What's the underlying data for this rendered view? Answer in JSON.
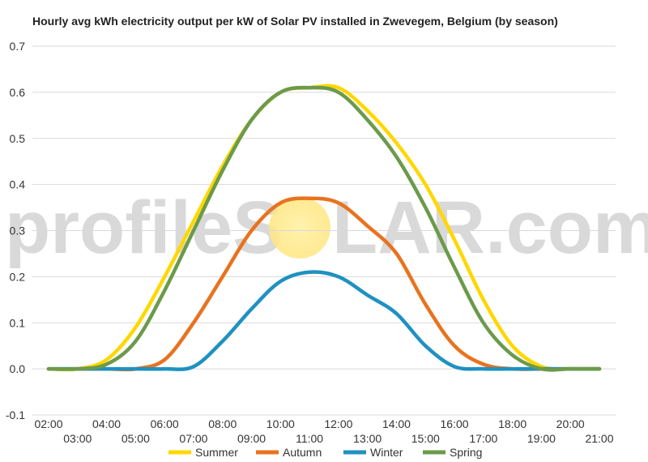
{
  "chart_data": {
    "type": "line",
    "title": "Hourly avg kWh electricity output per kW of Solar PV installed in Zwevegem, Belgium (by season)",
    "xlabel": "",
    "ylabel": "",
    "ylim": [
      -0.1,
      0.7
    ],
    "yticks": [
      "-0.1",
      "0.0",
      "0.1",
      "0.2",
      "0.3",
      "0.4",
      "0.5",
      "0.6",
      "0.7"
    ],
    "xlim": [
      2,
      21
    ],
    "x_tick_labels_upper": [
      "02:00",
      "04:00",
      "06:00",
      "08:00",
      "10:00",
      "12:00",
      "14:00",
      "16:00",
      "18:00",
      "20:00"
    ],
    "x_tick_labels_lower": [
      "03:00",
      "05:00",
      "07:00",
      "09:00",
      "11:00",
      "13:00",
      "15:00",
      "17:00",
      "19:00",
      "21:00"
    ],
    "grid": true,
    "legend_position": "bottom",
    "x": [
      2,
      3,
      4,
      5,
      6,
      7,
      8,
      9,
      10,
      11,
      12,
      13,
      14,
      15,
      16,
      17,
      18,
      19,
      20,
      21
    ],
    "series": [
      {
        "name": "Summer",
        "color": "#FFD700",
        "values": [
          0,
          0,
          0.02,
          0.09,
          0.2,
          0.32,
          0.44,
          0.54,
          0.6,
          0.61,
          0.61,
          0.56,
          0.49,
          0.4,
          0.28,
          0.15,
          0.05,
          0.005,
          0,
          0
        ]
      },
      {
        "name": "Autumn",
        "color": "#E8731F",
        "values": [
          0,
          0,
          0,
          0,
          0.02,
          0.1,
          0.2,
          0.3,
          0.36,
          0.37,
          0.36,
          0.31,
          0.25,
          0.14,
          0.05,
          0.01,
          0,
          0,
          0,
          0
        ]
      },
      {
        "name": "Winter",
        "color": "#1F91C1",
        "values": [
          0,
          0,
          0,
          0,
          0,
          0.005,
          0.06,
          0.13,
          0.19,
          0.21,
          0.2,
          0.16,
          0.12,
          0.05,
          0.005,
          0,
          0,
          0,
          0,
          0
        ]
      },
      {
        "name": "Spring",
        "color": "#6C9A4B",
        "values": [
          0,
          0,
          0.01,
          0.06,
          0.17,
          0.3,
          0.43,
          0.54,
          0.6,
          0.61,
          0.6,
          0.54,
          0.46,
          0.35,
          0.22,
          0.1,
          0.03,
          0,
          0,
          0
        ]
      }
    ]
  },
  "watermark": {
    "text_before": "profileS",
    "text_after": "LAR.com",
    "sun_color": "#FFE680"
  }
}
